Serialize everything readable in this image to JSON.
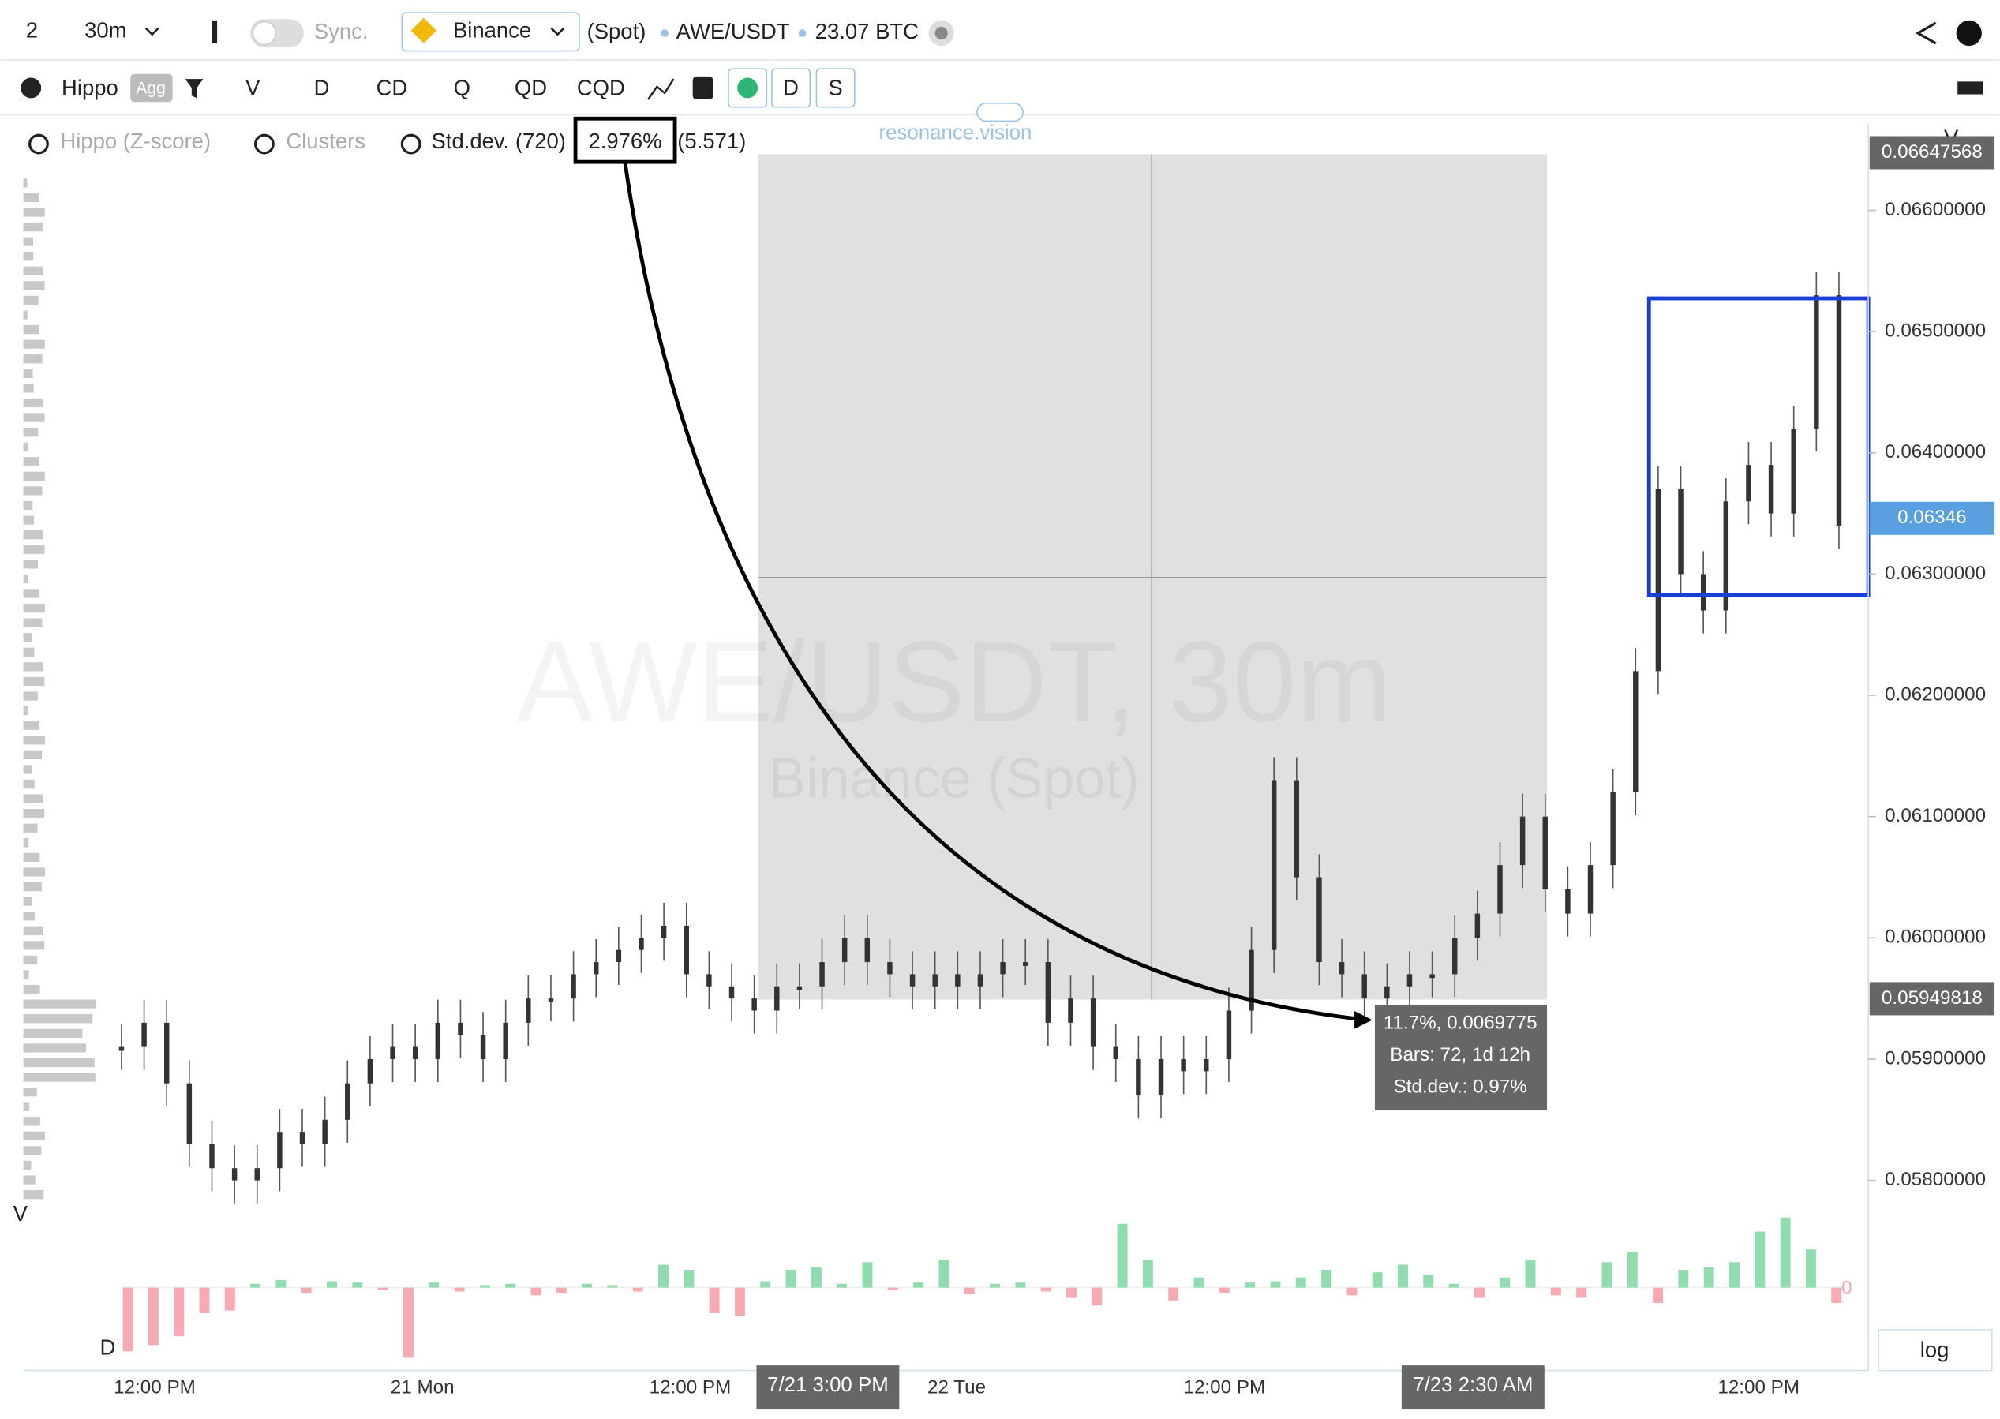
{
  "toolbar": {
    "layout": "2",
    "interval": "30m",
    "sync": "Sync.",
    "exchange": "Binance",
    "market": "(Spot)",
    "symbol": "AWE/USDT",
    "volume": "23.07 BTC"
  },
  "toolbar2": {
    "indicator": "Hippo",
    "agg": "Agg",
    "buttons": [
      "V",
      "D",
      "CD",
      "Q",
      "QD",
      "CQD"
    ],
    "d": "D",
    "s": "S"
  },
  "legend": {
    "hippo": "Hippo (Z-score)",
    "clusters": "Clusters",
    "stddev": "Std.dev. (720)",
    "stddev_value": "2.976%",
    "stddev_extra": "(5.571)"
  },
  "watermark": {
    "site": "resonance.vision",
    "symbol": "AWE/USDT, 30m",
    "exchange": "Binance (Spot)"
  },
  "price_ticks": [
    {
      "value": 0.066,
      "label": "0.06600000"
    },
    {
      "value": 0.065,
      "label": "0.06500000"
    },
    {
      "value": 0.064,
      "label": "0.06400000"
    },
    {
      "value": 0.063,
      "label": "0.06300000"
    },
    {
      "value": 0.062,
      "label": "0.06200000"
    },
    {
      "value": 0.061,
      "label": "0.06100000"
    },
    {
      "value": 0.06,
      "label": "0.06000000"
    },
    {
      "value": 0.059,
      "label": "0.05900000"
    },
    {
      "value": 0.058,
      "label": "0.05800000"
    }
  ],
  "price_labels": [
    {
      "value": 0.06647568,
      "label": "0.06647568"
    },
    {
      "value": 0.06346,
      "label": "0.06346"
    },
    {
      "value": 0.05949818,
      "label": "0.05949818"
    }
  ],
  "time_labels": [
    "12:00 PM",
    "21 Mon",
    "12:00 PM",
    "7/21 3:00 PM",
    "22 Tue",
    "12:00 PM",
    "7/23 2:30 AM",
    "12:00 PM"
  ],
  "measure": {
    "line1": "11.7%, 0.0069775",
    "line2": "Bars: 72, 1d 12h",
    "line3": "Std.dev.: 0.97%"
  },
  "axis_v": "V",
  "pane_v": "V",
  "pane_d": "D",
  "delta_zero": "0",
  "log": "log",
  "closes": [
    0.0591,
    0.0593,
    0.0588,
    0.0583,
    0.0581,
    0.058,
    0.0581,
    0.0584,
    0.0583,
    0.0585,
    0.0588,
    0.059,
    0.0591,
    0.059,
    0.0593,
    0.0592,
    0.059,
    0.0593,
    0.0595,
    0.0595,
    0.0597,
    0.0598,
    0.0599,
    0.06,
    0.0601,
    0.0597,
    0.0596,
    0.0595,
    0.0594,
    0.0596,
    0.0596,
    0.0598,
    0.06,
    0.0598,
    0.0597,
    0.0596,
    0.0597,
    0.0596,
    0.0597,
    0.0598,
    0.0598,
    0.0593,
    0.0595,
    0.0591,
    0.059,
    0.0587,
    0.059,
    0.0589,
    0.059,
    0.0594,
    0.0599,
    0.0613,
    0.0605,
    0.0598,
    0.0597,
    0.0595,
    0.0596,
    0.0597,
    0.0597,
    0.06,
    0.0602,
    0.0606,
    0.061,
    0.0604,
    0.0602,
    0.0606,
    0.0612,
    0.0622,
    0.0637,
    0.063,
    0.0627,
    0.0636,
    0.0639,
    0.0635,
    0.0642,
    0.0653,
    0.0634
  ],
  "delta": [
    -50,
    -45,
    -38,
    -20,
    -18,
    3,
    6,
    -4,
    5,
    4,
    -2,
    -55,
    4,
    -3,
    2,
    3,
    -6,
    -4,
    3,
    2,
    -3,
    18,
    14,
    -20,
    -22,
    5,
    14,
    16,
    3,
    20,
    -2,
    4,
    22,
    -5,
    3,
    4,
    -3,
    -8,
    -14,
    50,
    22,
    -10,
    8,
    -4,
    4,
    5,
    8,
    14,
    -6,
    12,
    18,
    10,
    3,
    -8,
    8,
    22,
    -6,
    -8,
    20,
    28,
    -12,
    14,
    16,
    20,
    44,
    55,
    30,
    -12
  ]
}
